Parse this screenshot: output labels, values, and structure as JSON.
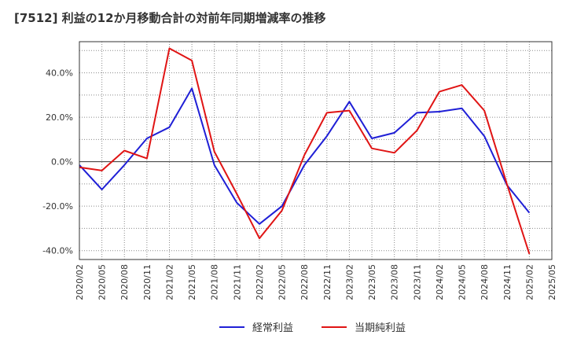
{
  "chart_data": {
    "type": "line",
    "title": "[7512]  利益の12か月移動合計の対前年同期増減率の推移",
    "xlabel": "",
    "ylabel": "",
    "categories": [
      "2020/02",
      "2020/05",
      "2020/08",
      "2020/11",
      "2021/02",
      "2021/05",
      "2021/08",
      "2021/11",
      "2022/02",
      "2022/05",
      "2022/08",
      "2022/11",
      "2023/02",
      "2023/05",
      "2023/08",
      "2023/11",
      "2024/02",
      "2024/05",
      "2024/08",
      "2024/11",
      "2025/02",
      "2025/05"
    ],
    "ylim": [
      -44,
      54
    ],
    "yticks": [
      -40,
      -20,
      0,
      20,
      40
    ],
    "ytick_labels": [
      "-40.0%",
      "-20.0%",
      "0.0%",
      "20.0%",
      "40.0%"
    ],
    "grid": true,
    "legend_position": "bottom-center",
    "series": [
      {
        "name": "経常利益",
        "color": "#1f1fd6",
        "values": [
          -1.5,
          -12.5,
          -1.5,
          10.5,
          15.5,
          33.0,
          -1.5,
          -18.5,
          -28.0,
          -20.0,
          -1.5,
          11.5,
          27.0,
          10.5,
          13.0,
          22.0,
          22.5,
          24.0,
          11.5,
          -10.5,
          -23.0,
          null
        ]
      },
      {
        "name": "当期純利益",
        "color": "#e01414",
        "values": [
          -2.5,
          -4.0,
          5.0,
          1.5,
          51.0,
          45.5,
          4.5,
          -14.5,
          -34.5,
          -22.0,
          3.0,
          22.0,
          23.0,
          6.0,
          4.0,
          14.0,
          31.5,
          34.5,
          23.0,
          -10.0,
          -41.5,
          null
        ]
      }
    ]
  }
}
